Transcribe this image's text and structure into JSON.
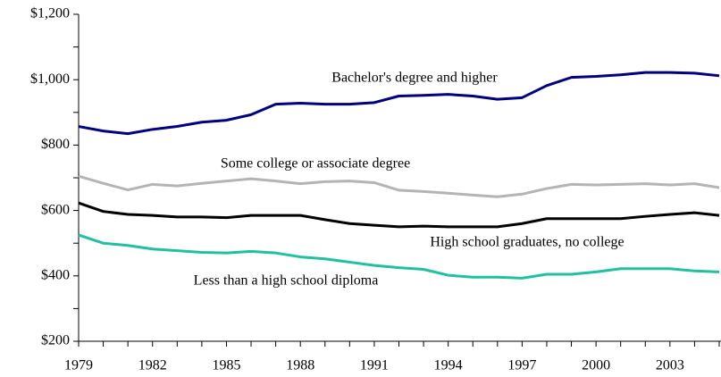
{
  "chart_data": {
    "type": "line",
    "x": [
      1979,
      1980,
      1981,
      1982,
      1983,
      1984,
      1985,
      1986,
      1987,
      1988,
      1989,
      1990,
      1991,
      1992,
      1993,
      1994,
      1995,
      1996,
      1997,
      1998,
      1999,
      2000,
      2001,
      2002,
      2003,
      2004,
      2005
    ],
    "xlim": [
      1979,
      2005
    ],
    "xticks": [
      1979,
      1982,
      1985,
      1988,
      1991,
      1994,
      1997,
      2000,
      2003
    ],
    "xticks_minor": [
      1980,
      1981,
      1983,
      1984,
      1986,
      1987,
      1989,
      1990,
      1992,
      1993,
      1995,
      1996,
      1998,
      1999,
      2001,
      2002,
      2004,
      2005
    ],
    "ylim": [
      200,
      1200
    ],
    "yticks": [
      {
        "value": 200,
        "label": "$200"
      },
      {
        "value": 400,
        "label": "$400"
      },
      {
        "value": 600,
        "label": "$600"
      },
      {
        "value": 800,
        "label": "$800"
      },
      {
        "value": 1000,
        "label": "$1,000"
      },
      {
        "value": 1200,
        "label": "$1,200"
      }
    ],
    "yticks_minor": [
      300,
      500,
      700,
      900,
      1100
    ],
    "series": [
      {
        "name": "Bachelor's degree and higher",
        "color": "#000080",
        "values": [
          857,
          843,
          835,
          848,
          857,
          870,
          876,
          893,
          925,
          928,
          925,
          925,
          930,
          950,
          952,
          955,
          950,
          940,
          945,
          982,
          1007,
          1010,
          1015,
          1022,
          1022,
          1020,
          1012
        ]
      },
      {
        "name": "Some college or associate degree",
        "color": "#b4b4b4",
        "values": [
          705,
          683,
          663,
          680,
          675,
          683,
          690,
          697,
          690,
          682,
          688,
          690,
          685,
          662,
          658,
          653,
          647,
          642,
          650,
          667,
          680,
          678,
          680,
          682,
          678,
          682,
          670
        ]
      },
      {
        "name": "High school graduates, no college",
        "color": "#000000",
        "values": [
          623,
          597,
          588,
          585,
          580,
          580,
          578,
          585,
          585,
          585,
          572,
          560,
          555,
          550,
          552,
          550,
          550,
          550,
          560,
          575,
          575,
          575,
          575,
          582,
          588,
          593,
          585
        ]
      },
      {
        "name": "Less than a high school diploma",
        "color": "#20c0a0",
        "values": [
          525,
          500,
          493,
          482,
          477,
          472,
          470,
          475,
          470,
          458,
          452,
          442,
          432,
          425,
          420,
          402,
          396,
          396,
          393,
          405,
          405,
          412,
          422,
          422,
          422,
          415,
          412
        ]
      }
    ]
  }
}
